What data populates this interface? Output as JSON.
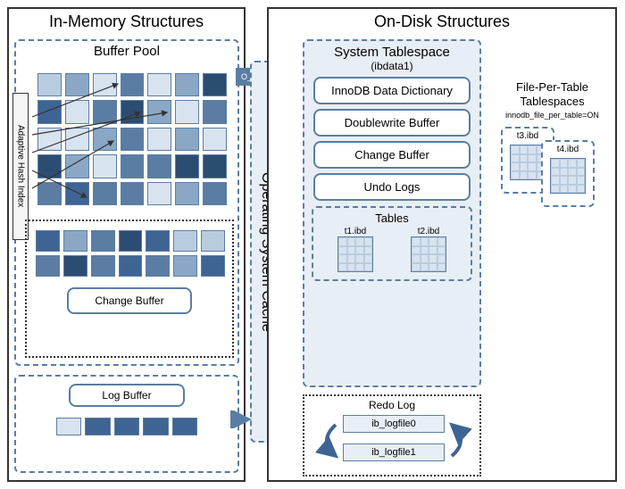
{
  "diagram": {
    "type": "infographic",
    "title_left": "In-Memory Structures",
    "title_right": "On-Disk Structures",
    "colors": {
      "border_main": "#333333",
      "border_blue": "#5b7da3",
      "bg_container": "#e8eef5",
      "cell_shades": [
        "#2c4d72",
        "#3e6493",
        "#5b7da3",
        "#8aa8c5",
        "#b8cce0",
        "#d8e3f0"
      ]
    }
  },
  "left": {
    "buffer_pool": {
      "title": "Buffer Pool",
      "adaptive_hash": "Adaptive Hash Index",
      "grid_rows": 5,
      "grid_cols": 7,
      "cells": [
        "#b8cce0",
        "#8aa8c5",
        "#d8e3f0",
        "#5b7da3",
        "#d8e3f0",
        "#8aa8c5",
        "#2c4d72",
        "#3e6493",
        "#d8e3f0",
        "#5b7da3",
        "#2c4d72",
        "#8aa8c5",
        "#d8e3f0",
        "#5b7da3",
        "#d8e3f0",
        "#d8e3f0",
        "#8aa8c5",
        "#5b7da3",
        "#d8e3f0",
        "#8aa8c5",
        "#d8e3f0",
        "#2c4d72",
        "#8aa8c5",
        "#d8e3f0",
        "#5b7da3",
        "#5b7da3",
        "#2c4d72",
        "#2c4d72",
        "#5b7da3",
        "#3e6493",
        "#5b7da3",
        "#5b7da3",
        "#d8e3f0",
        "#8aa8c5",
        "#5b7da3"
      ],
      "change_buffer_title": "Change Buffer",
      "change_buffer_cells": [
        "#3e6493",
        "#8aa8c5",
        "#5b7da3",
        "#2c4d72",
        "#3e6493",
        "#b8cce0",
        "#b8cce0",
        "#5b7da3",
        "#2c4d72",
        "#5b7da3",
        "#3e6493",
        "#5b7da3",
        "#8aa8c5",
        "#3e6493"
      ]
    },
    "log_buffer": {
      "title": "Log Buffer",
      "cells": [
        "#d8e3f0",
        "#3e6493",
        "#3e6493",
        "#3e6493",
        "#3e6493"
      ]
    }
  },
  "middle": {
    "o_direct": "O_DIRECT",
    "os_cache": "Operating System Cache"
  },
  "right": {
    "system_tablespace": {
      "title": "System Tablespace",
      "subtitle": "(ibdata1)",
      "items": [
        "InnoDB Data Dictionary",
        "Doublewrite Buffer",
        "Change Buffer",
        "Undo Logs"
      ],
      "tables_title": "Tables",
      "tables": [
        "t1.ibd",
        "t2.ibd"
      ]
    },
    "file_per_table": {
      "title": "File-Per-Table Tablespaces",
      "setting": "innodb_file_per_table=ON",
      "files": [
        "t3.ibd",
        "t4.ibd"
      ]
    },
    "redo_log": {
      "title": "Redo Log",
      "files": [
        "ib_logfile0",
        "ib_logfile1"
      ]
    }
  }
}
